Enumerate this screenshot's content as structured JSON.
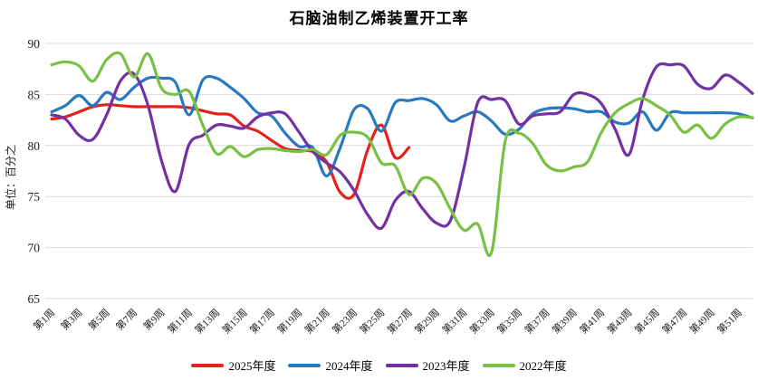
{
  "title": "石脑油制乙烯装置开工率",
  "y_axis": {
    "unit_label": "单位：百分之",
    "ticks": [
      90,
      85,
      80,
      75,
      70,
      65
    ],
    "min": 65,
    "max": 90
  },
  "x_axis": {
    "tick_weeks": [
      1,
      3,
      5,
      7,
      9,
      11,
      13,
      15,
      17,
      19,
      21,
      23,
      25,
      27,
      29,
      31,
      33,
      35,
      37,
      39,
      41,
      43,
      45,
      47,
      49,
      51
    ],
    "tick_labels": [
      "第1周",
      "第3周",
      "第5周",
      "第7周",
      "第9周",
      "第11周",
      "第13周",
      "第15周",
      "第17周",
      "第19周",
      "第21周",
      "第23周",
      "第25周",
      "第27周",
      "第29周",
      "第31周",
      "第33周",
      "第35周",
      "第37周",
      "第39周",
      "第41周",
      "第43周",
      "第45周",
      "第47周",
      "第49周",
      "第51周"
    ]
  },
  "colors": {
    "grid": "#d9d9d9",
    "axis_text": "#1a1a1a",
    "series_2025": "#e7211a",
    "series_2024": "#2979c0",
    "series_2023": "#7331a5",
    "series_2022": "#78c143"
  },
  "chart_data": {
    "type": "line",
    "title": "石脑油制乙烯装置开工率",
    "ylabel": "单位：百分之",
    "ylim": [
      65,
      90
    ],
    "y_step": 5,
    "grid": true,
    "smooth_lines": true,
    "legend_position": "bottom",
    "weeks_total": 52,
    "series": [
      {
        "name": "2025年度",
        "color": "#e7211a",
        "start_week": 1,
        "values": [
          82.6,
          82.8,
          83.3,
          83.8,
          84.0,
          83.9,
          83.8,
          83.8,
          83.8,
          83.8,
          83.7,
          83.4,
          83.1,
          83.0,
          81.9,
          81.4,
          80.5,
          79.7,
          79.5,
          79.4,
          78.4,
          75.4,
          75.2,
          79.6,
          82.0,
          78.8,
          79.8
        ]
      },
      {
        "name": "2024年度",
        "color": "#2979c0",
        "start_week": 1,
        "values": [
          83.3,
          83.9,
          84.9,
          83.9,
          85.2,
          84.5,
          85.7,
          86.6,
          86.6,
          86.2,
          83.0,
          86.4,
          86.6,
          85.7,
          84.6,
          83.2,
          82.9,
          81.2,
          79.9,
          79.8,
          77.0,
          79.8,
          83.5,
          83.6,
          81.4,
          84.2,
          84.4,
          84.6,
          84.0,
          82.4,
          82.9,
          83.3,
          82.4,
          81.1,
          81.6,
          83.1,
          83.6,
          83.7,
          83.6,
          83.3,
          83.3,
          82.3,
          82.2,
          83.3,
          81.5,
          83.2,
          83.2,
          83.2,
          83.2,
          83.2,
          83.1,
          82.7
        ]
      },
      {
        "name": "2023年度",
        "color": "#7331a5",
        "start_week": 1,
        "values": [
          83.0,
          82.6,
          81.0,
          80.6,
          83.0,
          86.3,
          87.0,
          84.0,
          78.5,
          75.5,
          80.1,
          81.0,
          82.0,
          81.9,
          81.7,
          82.8,
          83.2,
          83.1,
          81.3,
          79.4,
          78.3,
          77.4,
          75.6,
          73.2,
          71.9,
          74.6,
          75.5,
          73.8,
          72.4,
          72.6,
          77.8,
          84.2,
          84.5,
          84.4,
          82.1,
          82.9,
          83.1,
          83.3,
          85.0,
          85.0,
          84.1,
          81.6,
          79.1,
          84.5,
          87.7,
          87.9,
          87.8,
          86.0,
          85.6,
          86.9,
          86.2,
          85.1
        ]
      },
      {
        "name": "2022年度",
        "color": "#78c143",
        "start_week": 1,
        "values": [
          87.9,
          88.2,
          87.8,
          86.3,
          88.4,
          89.0,
          86.7,
          89.0,
          85.6,
          85.0,
          85.3,
          82.0,
          79.2,
          79.9,
          78.9,
          79.6,
          79.7,
          79.5,
          79.4,
          79.6,
          79.1,
          81.0,
          81.3,
          80.8,
          78.3,
          78.0,
          75.2,
          76.8,
          76.3,
          73.8,
          71.7,
          72.3,
          69.5,
          80.4,
          81.2,
          80.2,
          78.1,
          77.5,
          77.9,
          78.4,
          81.3,
          83.2,
          84.1,
          84.6,
          83.9,
          83.0,
          81.3,
          82.0,
          80.7,
          82.1,
          82.8,
          82.7
        ]
      }
    ]
  }
}
